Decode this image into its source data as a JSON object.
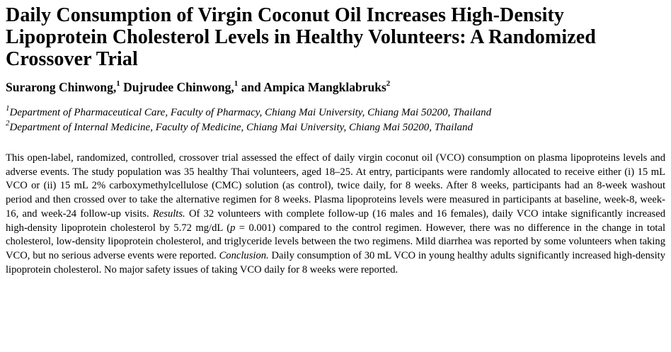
{
  "title": "Daily Consumption of Virgin Coconut Oil Increases High-Density Lipoprotein Cholesterol Levels in Healthy Volunteers: A Randomized Crossover Trial",
  "authors": [
    {
      "name": "Surarong Chinwong,",
      "sup": "1"
    },
    {
      "name": " Dujrudee Chinwong,",
      "sup": "1"
    },
    {
      "name": " and Ampica Mangklabruks",
      "sup": "2"
    }
  ],
  "affiliations": [
    {
      "sup": "1",
      "text": "Department of Pharmaceutical Care, Faculty of Pharmacy, Chiang Mai University, Chiang Mai 50200, Thailand"
    },
    {
      "sup": "2",
      "text": "Department of Internal Medicine, Faculty of Medicine, Chiang Mai University, Chiang Mai 50200, Thailand"
    }
  ],
  "abstract": {
    "intro": "This open-label, randomized, controlled, crossover trial assessed the effect of daily virgin coconut oil (VCO) consumption on plasma lipoproteins levels and adverse events. The study population was 35 healthy Thai volunteers, aged 18–25. At entry, participants were randomly allocated to receive either (i) 15 mL VCO or (ii) 15 mL 2% carboxymethylcellulose (CMC) solution (as control), twice daily, for 8 weeks. After 8 weeks, participants had an 8-week washout period and then crossed over to take the alternative regimen for 8 weeks. Plasma lipoproteins levels were measured in participants at baseline, week-8, week-16, and week-24 follow-up visits.",
    "results_label": "Results.",
    "results_text_a": " Of 32 volunteers with complete follow-up (16 males and 16 females), daily VCO intake significantly increased high-density lipoprotein cholesterol by 5.72 mg/dL (",
    "p_symbol": "p",
    "results_text_b": " = 0.001) compared to the control regimen. However, there was no difference in the change in total cholesterol, low-density lipoprotein cholesterol, and triglyceride levels between the two regimens. Mild diarrhea was reported by some volunteers when taking VCO, but no serious adverse events were reported.",
    "conclusion_label": "Conclusion.",
    "conclusion_text": " Daily consumption of 30 mL VCO in young healthy adults significantly increased high-density lipoprotein cholesterol. No major safety issues of taking VCO daily for 8 weeks were reported."
  }
}
